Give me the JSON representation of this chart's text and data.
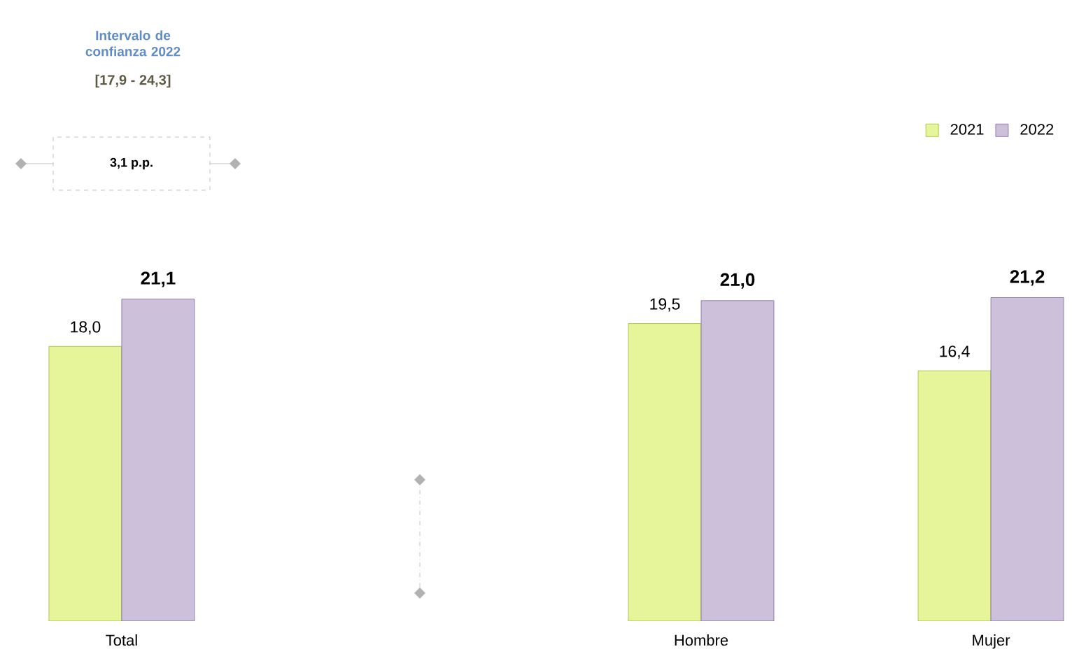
{
  "chart_data": {
    "type": "bar",
    "categories": [
      "Total",
      null,
      "Hombre",
      "Mujer"
    ],
    "series": [
      {
        "name": "2021",
        "color": "#e6f59a",
        "values": [
          18.0,
          null,
          19.5,
          16.4
        ],
        "value_labels": [
          "18,0",
          null,
          "19,5",
          "16,4"
        ]
      },
      {
        "name": "2022",
        "color": "#ccc0da",
        "values": [
          21.1,
          null,
          21.0,
          21.2
        ],
        "value_labels": [
          "21,1",
          null,
          "21,0",
          "21,2"
        ]
      }
    ],
    "legend": "top right",
    "annotations": [
      "Intervalo de confianza 2022",
      "[17,9 - 24,3]",
      "3,1 p.p."
    ]
  }
}
